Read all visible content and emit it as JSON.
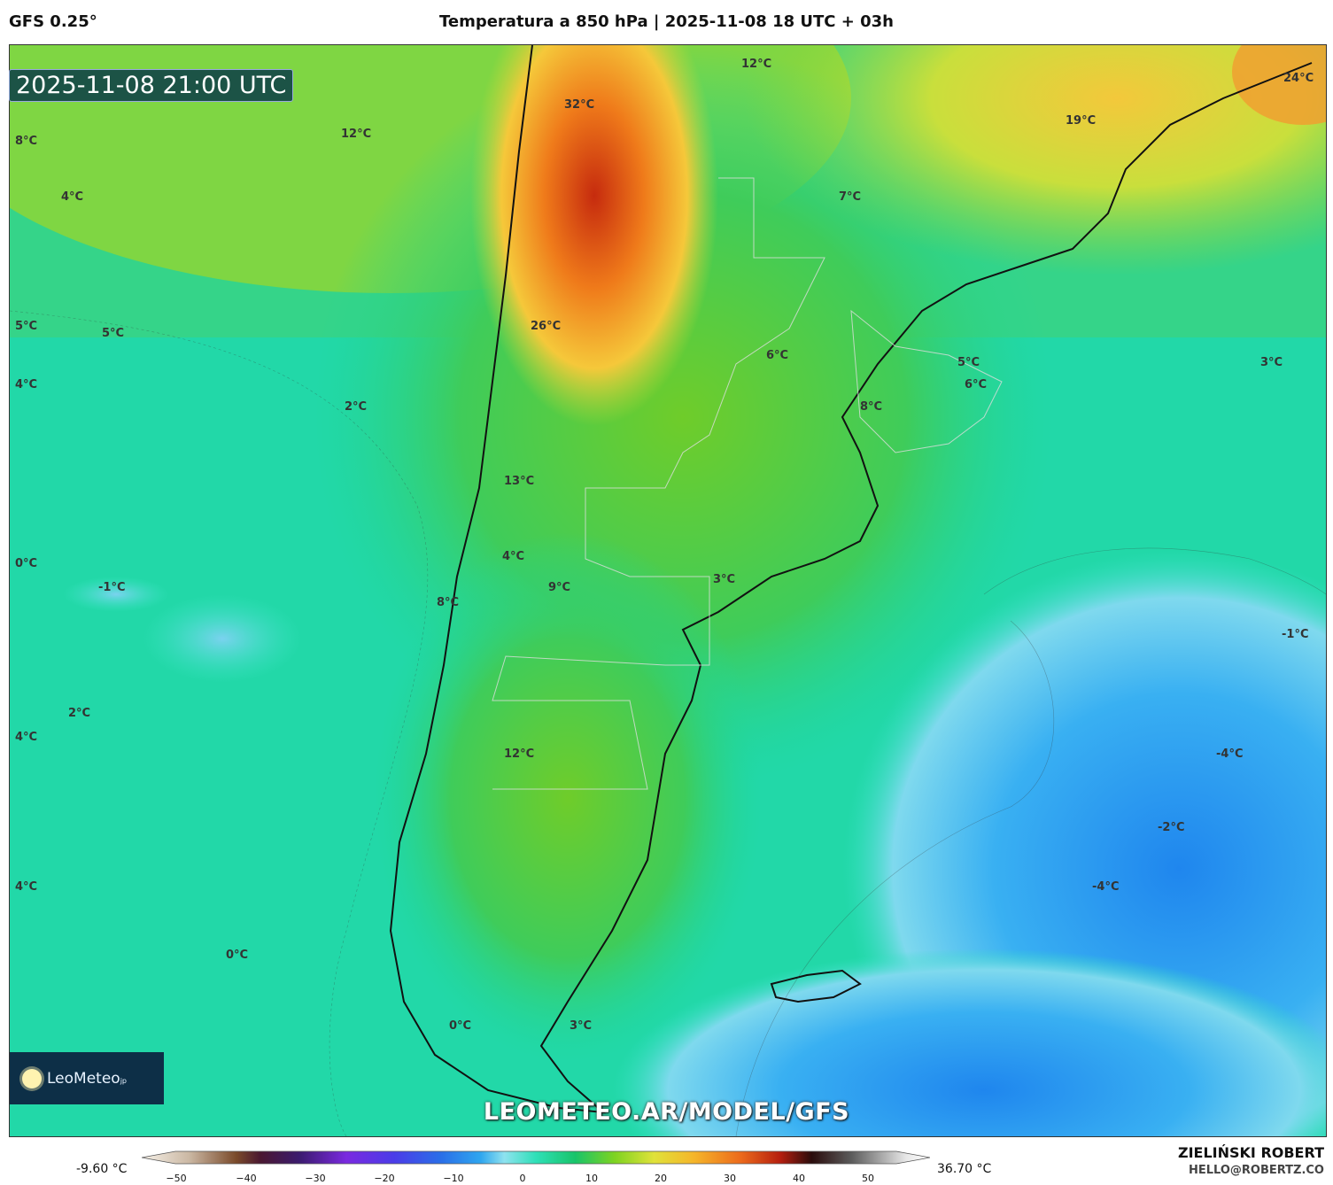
{
  "header": {
    "model": "GFS 0.25°",
    "title": "Temperatura a 850 hPa | 2025-11-08 18 UTC + 03h"
  },
  "map": {
    "timestamp": "2025-11-08 21:00 UTC",
    "watermark": "LEOMETEO.AR/MODEL/GFS",
    "logo_text": "LeoMeteo",
    "logo_suffix": "jp",
    "labels": [
      {
        "text": "32°C"
      },
      {
        "text": "12°C"
      },
      {
        "text": "8°C"
      },
      {
        "text": "12°C"
      },
      {
        "text": "4°C"
      },
      {
        "text": "24°C"
      },
      {
        "text": "19°C"
      },
      {
        "text": "7°C"
      },
      {
        "text": "26°C"
      },
      {
        "text": "6°C"
      },
      {
        "text": "5°C"
      },
      {
        "text": "5°C"
      },
      {
        "text": "5°C"
      },
      {
        "text": "6°C"
      },
      {
        "text": "4°C"
      },
      {
        "text": "2°C"
      },
      {
        "text": "8°C"
      },
      {
        "text": "3°C"
      },
      {
        "text": "13°C"
      },
      {
        "text": "0°C"
      },
      {
        "text": "4°C"
      },
      {
        "text": "-1°C"
      },
      {
        "text": "9°C"
      },
      {
        "text": "3°C"
      },
      {
        "text": "8°C"
      },
      {
        "text": "-1°C"
      },
      {
        "text": "2°C"
      },
      {
        "text": "4°C"
      },
      {
        "text": "12°C"
      },
      {
        "text": "-4°C"
      },
      {
        "text": "-2°C"
      },
      {
        "text": "4°C"
      },
      {
        "text": "-4°C"
      },
      {
        "text": "0°C"
      },
      {
        "text": "0°C"
      },
      {
        "text": "3°C"
      }
    ],
    "colors": {
      "warm": "#e8541c",
      "mid": "#7ed321",
      "cool": "#22c98c",
      "cold": "#1a8ff0"
    }
  },
  "colorbar": {
    "min_label": "-9.60 °C",
    "max_label": "36.70 °C",
    "ticks": [
      "−50",
      "−40",
      "−30",
      "−20",
      "−10",
      "0",
      "10",
      "20",
      "30",
      "40",
      "50"
    ]
  },
  "credits": {
    "author": "ZIELIŃSKI ROBERT",
    "email": "HELLO@ROBERTZ.CO"
  }
}
